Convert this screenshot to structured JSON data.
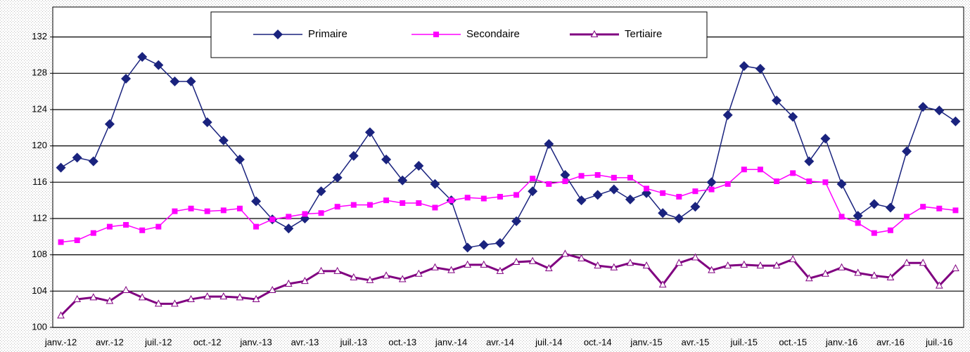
{
  "chart_data": {
    "type": "line",
    "categories": [
      "janv.-12",
      null,
      null,
      "avr.-12",
      null,
      null,
      "juil.-12",
      null,
      null,
      "oct.-12",
      null,
      null,
      "janv.-13",
      null,
      null,
      "avr.-13",
      null,
      null,
      "juil.-13",
      null,
      null,
      "oct.-13",
      null,
      null,
      "janv.-14",
      null,
      null,
      "avr.-14",
      null,
      null,
      "juil.-14",
      null,
      null,
      "oct.-14",
      null,
      null,
      "janv.-15",
      null,
      null,
      "avr.-15",
      null,
      null,
      "juil.-15",
      null,
      null,
      "oct.-15",
      null,
      null,
      "janv.-16",
      null,
      null,
      "avr.-16",
      null,
      null,
      "juil.-16",
      null
    ],
    "series": [
      {
        "name": "Primaire",
        "color": "#1a237e",
        "marker": "diamond",
        "values": [
          117.6,
          118.7,
          118.3,
          122.4,
          127.4,
          129.8,
          128.9,
          127.1,
          127.1,
          122.6,
          120.6,
          118.5,
          113.9,
          111.9,
          110.9,
          112.0,
          115.0,
          116.5,
          118.9,
          121.5,
          118.5,
          116.2,
          117.8,
          115.8,
          114.0,
          108.8,
          109.1,
          109.3,
          111.7,
          115.0,
          120.2,
          116.8,
          114.0,
          114.6,
          115.2,
          114.1,
          114.8,
          112.6,
          112.0,
          113.3,
          116.0,
          123.4,
          128.8,
          128.5,
          125.0,
          123.2,
          118.3,
          120.8,
          115.8,
          112.3,
          113.6,
          113.2,
          119.4,
          124.3,
          123.9,
          122.7
        ]
      },
      {
        "name": "Secondaire",
        "color": "#ff00ff",
        "marker": "square",
        "values": [
          109.4,
          109.6,
          110.4,
          111.1,
          111.3,
          110.7,
          111.1,
          112.8,
          113.1,
          112.8,
          112.9,
          113.1,
          111.1,
          111.9,
          112.2,
          112.5,
          112.6,
          113.3,
          113.5,
          113.5,
          114.0,
          113.7,
          113.7,
          113.2,
          114.0,
          114.3,
          114.2,
          114.4,
          114.6,
          116.4,
          115.8,
          116.1,
          116.7,
          116.8,
          116.5,
          116.5,
          115.3,
          114.8,
          114.4,
          115.0,
          115.2,
          115.8,
          117.4,
          117.4,
          116.1,
          117.0,
          116.1,
          116.0,
          112.2,
          111.5,
          110.4,
          110.7,
          112.2,
          113.3,
          113.1,
          112.9
        ]
      },
      {
        "name": "Tertiaire",
        "color": "#800080",
        "marker": "triangle",
        "values": [
          101.3,
          103.1,
          103.3,
          102.9,
          104.1,
          103.3,
          102.6,
          102.6,
          103.1,
          103.4,
          103.4,
          103.3,
          103.1,
          104.1,
          104.8,
          105.1,
          106.2,
          106.2,
          105.5,
          105.2,
          105.7,
          105.3,
          105.9,
          106.6,
          106.3,
          106.9,
          106.9,
          106.2,
          107.2,
          107.3,
          106.5,
          108.1,
          107.6,
          106.8,
          106.6,
          107.1,
          106.8,
          104.7,
          107.1,
          107.7,
          106.3,
          106.8,
          106.9,
          106.8,
          106.8,
          107.5,
          105.4,
          105.9,
          106.6,
          106.0,
          105.7,
          105.5,
          107.1,
          107.1,
          104.6,
          106.5
        ]
      }
    ],
    "ylim": [
      100,
      135.3
    ],
    "yticks": [
      100,
      104,
      108,
      112,
      116,
      120,
      124,
      128,
      132
    ],
    "grid": true,
    "legend": "top"
  }
}
